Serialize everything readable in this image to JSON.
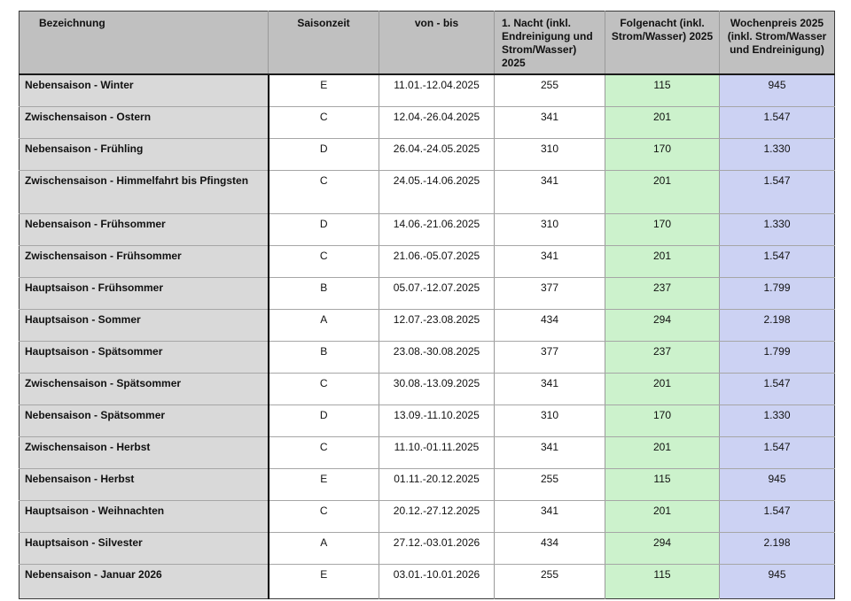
{
  "colors": {
    "header_bg": "#c0c0c0",
    "label_column_bg": "#d9d9d9",
    "folgenacht_column_bg": "#ccf2cc",
    "wochenpreis_column_bg": "#ccd2f3",
    "grid_line": "#9a9a9a",
    "strong_line": "#000000",
    "text": "#111111"
  },
  "table": {
    "columns": [
      {
        "key": "bezeichnung",
        "label": "Bezeichnung"
      },
      {
        "key": "saisonzeit",
        "label": "Saisonzeit"
      },
      {
        "key": "von_bis",
        "label": "von - bis"
      },
      {
        "key": "erste_nacht",
        "label": "1. Nacht (inkl. Endreinigung und Strom/Wasser) 2025"
      },
      {
        "key": "folgenacht",
        "label": "Folgenacht (inkl. Strom/Wasser) 2025"
      },
      {
        "key": "wochenpreis",
        "label": "Wochenpreis 2025 (inkl. Strom/Wasser und Endreinigung)"
      }
    ],
    "rows": [
      {
        "bezeichnung": "Nebensaison - Winter",
        "saisonzeit": "E",
        "von_bis": "11.01.-12.04.2025",
        "erste_nacht": "255",
        "folgenacht": "115",
        "wochenpreis": "945"
      },
      {
        "bezeichnung": "Zwischensaison - Ostern",
        "saisonzeit": "C",
        "von_bis": "12.04.-26.04.2025",
        "erste_nacht": "341",
        "folgenacht": "201",
        "wochenpreis": "1.547"
      },
      {
        "bezeichnung": "Nebensaison - Frühling",
        "saisonzeit": "D",
        "von_bis": "26.04.-24.05.2025",
        "erste_nacht": "310",
        "folgenacht": "170",
        "wochenpreis": "1.330"
      },
      {
        "bezeichnung": "Zwischensaison - Himmelfahrt bis Pfingsten",
        "saisonzeit": "C",
        "von_bis": "24.05.-14.06.2025",
        "erste_nacht": "341",
        "folgenacht": "201",
        "wochenpreis": "1.547",
        "tall": true
      },
      {
        "bezeichnung": "Nebensaison - Frühsommer",
        "saisonzeit": "D",
        "von_bis": "14.06.-21.06.2025",
        "erste_nacht": "310",
        "folgenacht": "170",
        "wochenpreis": "1.330"
      },
      {
        "bezeichnung": "Zwischensaison - Frühsommer",
        "saisonzeit": "C",
        "von_bis": "21.06.-05.07.2025",
        "erste_nacht": "341",
        "folgenacht": "201",
        "wochenpreis": "1.547"
      },
      {
        "bezeichnung": "Hauptsaison - Frühsommer",
        "saisonzeit": "B",
        "von_bis": "05.07.-12.07.2025",
        "erste_nacht": "377",
        "folgenacht": "237",
        "wochenpreis": "1.799"
      },
      {
        "bezeichnung": "Hauptsaison - Sommer",
        "saisonzeit": "A",
        "von_bis": "12.07.-23.08.2025",
        "erste_nacht": "434",
        "folgenacht": "294",
        "wochenpreis": "2.198"
      },
      {
        "bezeichnung": "Hauptsaison - Spätsommer",
        "saisonzeit": "B",
        "von_bis": "23.08.-30.08.2025",
        "erste_nacht": "377",
        "folgenacht": "237",
        "wochenpreis": "1.799"
      },
      {
        "bezeichnung": "Zwischensaison - Spätsommer",
        "saisonzeit": "C",
        "von_bis": "30.08.-13.09.2025",
        "erste_nacht": "341",
        "folgenacht": "201",
        "wochenpreis": "1.547"
      },
      {
        "bezeichnung": "Nebensaison - Spätsommer",
        "saisonzeit": "D",
        "von_bis": "13.09.-11.10.2025",
        "erste_nacht": "310",
        "folgenacht": "170",
        "wochenpreis": "1.330"
      },
      {
        "bezeichnung": "Zwischensaison - Herbst",
        "saisonzeit": "C",
        "von_bis": "11.10.-01.11.2025",
        "erste_nacht": "341",
        "folgenacht": "201",
        "wochenpreis": "1.547"
      },
      {
        "bezeichnung": "Nebensaison - Herbst",
        "saisonzeit": "E",
        "von_bis": "01.11.-20.12.2025",
        "erste_nacht": "255",
        "folgenacht": "115",
        "wochenpreis": "945"
      },
      {
        "bezeichnung": "Hauptsaison - Weihnachten",
        "saisonzeit": "C",
        "von_bis": "20.12.-27.12.2025",
        "erste_nacht": "341",
        "folgenacht": "201",
        "wochenpreis": "1.547"
      },
      {
        "bezeichnung": "Hauptsaison - Silvester",
        "saisonzeit": "A",
        "von_bis": "27.12.-03.01.2026",
        "erste_nacht": "434",
        "folgenacht": "294",
        "wochenpreis": "2.198"
      },
      {
        "bezeichnung": "Nebensaison - Januar 2026",
        "saisonzeit": "E",
        "von_bis": "03.01.-10.01.2026",
        "erste_nacht": "255",
        "folgenacht": "115",
        "wochenpreis": "945"
      }
    ]
  }
}
